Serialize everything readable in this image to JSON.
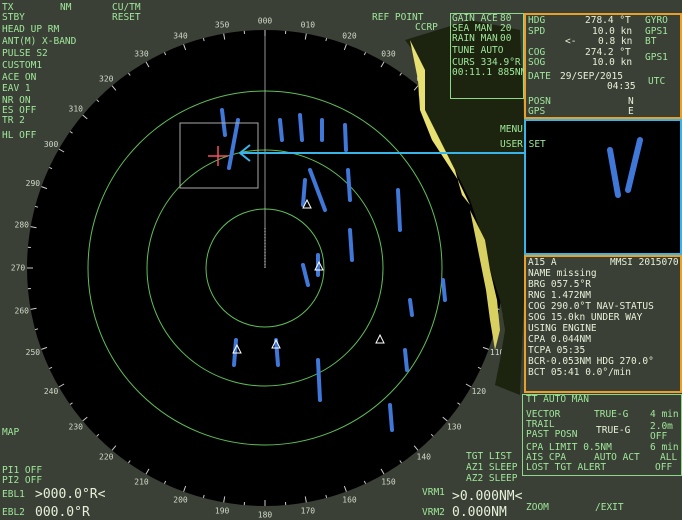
{
  "left_panel": [
    "TX",
    "NM",
    "STBY",
    "CU/TM",
    "RESET",
    "HEAD UP RM",
    "ANT(M) X-BAND",
    "PULSE S2",
    "CUSTOM1",
    "ACE ON",
    "EAV 1",
    "NR ON",
    "ES OFF",
    "TR 2",
    "HL OFF"
  ],
  "ref_point": [
    "REF POINT",
    "CCRP"
  ],
  "gain_panel": [
    "GAIN ACE",
    "80",
    "SEA MAN",
    "20",
    "RAIN MAN",
    "00",
    "TUNE AUTO",
    "CURS 334.9°R",
    "00:11.1 885NM"
  ],
  "own_ship": [
    "HDG",
    "278.4 °T",
    "GYRO",
    "SPD",
    "10.0 kn",
    "GPS1",
    "<-",
    "0.8 kn",
    "BT",
    "COG",
    "274.2 °T",
    "SOG",
    "10.0 kn",
    "GPS1",
    "DATE",
    "29/SEP/2015",
    "04:35",
    "UTC",
    "POSN",
    "N",
    "GPS",
    "E"
  ],
  "side_buttons": [
    "MENU",
    "USER SET"
  ],
  "target": [
    "A15  A",
    "MMSI 2015070",
    "NAME missing",
    "BRG 057.5°R",
    "RNG 1.472NM",
    "COG 290.0°T  NAV-STATUS",
    "SOG 15.0kn  UNDER WAY",
    "USING ENGINE",
    "CPA 0.044NM",
    "TCPA 05:35",
    "BCR-0.053NM HDG 270.0°",
    "BCT  05:41    0.0°/min"
  ],
  "tt_panel": [
    "TT AUTO MAN",
    "VECTOR",
    "TRUE-G",
    "4 min",
    "TRAIL",
    "TRUE-G",
    "2.0m",
    "PAST POSN",
    "OFF",
    "CPA LIMIT 0.5NM",
    "6 min",
    "AIS CPA",
    "AUTO ACT",
    "ALL",
    "LOST TGT ALERT",
    "OFF"
  ],
  "bottom": [
    "TGT LIST",
    "AZ1 SLEEP",
    "AZ2 SLEEP",
    "VRM1",
    ">0.000NM<",
    "VRM2",
    "0.000NM",
    "ZOOM",
    "/EXIT",
    "MAP",
    "PI1 OFF",
    "PI2 OFF",
    "EBL1",
    ">000.0°R<",
    "EBL2",
    "000.0°R"
  ],
  "bearing_labels": [
    "000",
    "010",
    "020",
    "030",
    "040",
    "050",
    "060",
    "070",
    "080",
    "090",
    "100",
    "110",
    "120",
    "130",
    "140",
    "150",
    "160",
    "170",
    "180",
    "190",
    "200",
    "210",
    "220",
    "230",
    "240",
    "250",
    "260",
    "270",
    "280",
    "290",
    "300",
    "310",
    "320",
    "330",
    "340",
    "350"
  ]
}
